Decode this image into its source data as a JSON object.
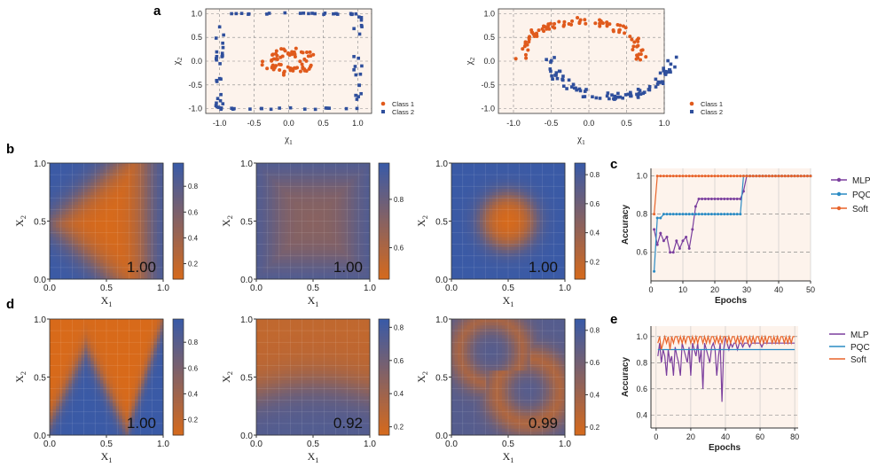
{
  "panel_labels": {
    "a": "a",
    "b": "b",
    "c": "c",
    "d": "d",
    "e": "e"
  },
  "colors": {
    "class1": "#e05a1c",
    "class2": "#2f4f9c",
    "mlp": "#7b3f9e",
    "pqc": "#2a8bc4",
    "soft": "#e8642a",
    "bg": "#fdf3ec",
    "heat_low": "#d86a1a",
    "heat_high": "#3a5aa6"
  },
  "chart_data": [
    {
      "id": "a-left",
      "type": "scatter",
      "xlabel": "χ1",
      "ylabel": "χ2",
      "xlim": [
        -1.2,
        1.2
      ],
      "ylim": [
        -1.1,
        1.1
      ],
      "xticks": [
        "-1.0",
        "-0.5",
        "0.0",
        "0.5",
        "1.0"
      ],
      "yticks": [
        "-1.0",
        "-0.5",
        "0.0",
        "0.5",
        "1.0"
      ],
      "legend": [
        "Class 1",
        "Class 2"
      ],
      "dataset": "circles"
    },
    {
      "id": "a-right",
      "type": "scatter",
      "xlabel": "χ1",
      "ylabel": "χ2",
      "xlim": [
        -1.2,
        1.0
      ],
      "ylim": [
        -1.1,
        1.1
      ],
      "xticks": [
        "-1.0",
        "-0.5",
        "0.0",
        "0.5",
        "1.0"
      ],
      "yticks": [
        "-1.0",
        "-0.5",
        "0.0",
        "0.5",
        "1.0"
      ],
      "legend": [
        "Class 1",
        "Class 2"
      ],
      "dataset": "moons"
    },
    {
      "id": "b1",
      "type": "heatmap",
      "xlabel": "X1",
      "ylabel": "X2",
      "score": "1.00",
      "shape": "triangle",
      "xticks": [
        "0.0",
        "0.5",
        "1.0"
      ],
      "yticks": [
        "0.0",
        "0.5",
        "1.0"
      ],
      "cbar_ticks": [
        "0.2",
        "0.4",
        "0.6",
        "0.8"
      ]
    },
    {
      "id": "b2",
      "type": "heatmap",
      "xlabel": "X1",
      "ylabel": "X2",
      "score": "1.00",
      "shape": "square",
      "xticks": [
        "0.0",
        "0.5",
        "1.0"
      ],
      "yticks": [
        "0.0",
        "0.5",
        "1.0"
      ],
      "cbar_ticks": [
        "0.6",
        "0.8"
      ]
    },
    {
      "id": "b3",
      "type": "heatmap",
      "xlabel": "X1",
      "ylabel": "X2",
      "score": "1.00",
      "shape": "disk",
      "xticks": [
        "0.0",
        "0.5",
        "1.0"
      ],
      "yticks": [
        "0.0",
        "0.5",
        "1.0"
      ],
      "cbar_ticks": [
        "0.2",
        "0.4",
        "0.6",
        "0.8"
      ]
    },
    {
      "id": "d1",
      "type": "heatmap",
      "xlabel": "X1",
      "ylabel": "X2",
      "score": "1.00",
      "shape": "zigzag",
      "xticks": [
        "0.0",
        "0.5",
        "1.0"
      ],
      "yticks": [
        "0.0",
        "0.5",
        "1.0"
      ],
      "cbar_ticks": [
        "0.2",
        "0.4",
        "0.6",
        "0.8"
      ]
    },
    {
      "id": "d2",
      "type": "heatmap",
      "xlabel": "X1",
      "ylabel": "X2",
      "score": "0.92",
      "shape": "band",
      "xticks": [
        "0.0",
        "0.5",
        "1.0"
      ],
      "yticks": [
        "0.0",
        "0.5",
        "1.0"
      ],
      "cbar_ticks": [
        "0.2",
        "0.4",
        "0.6",
        "0.8"
      ]
    },
    {
      "id": "d3",
      "type": "heatmap",
      "xlabel": "X1",
      "ylabel": "X2",
      "score": "0.99",
      "shape": "moons",
      "xticks": [
        "0.0",
        "0.5",
        "1.0"
      ],
      "yticks": [
        "0.0",
        "0.5",
        "1.0"
      ],
      "cbar_ticks": [
        "0.2",
        "0.4",
        "0.6",
        "0.8"
      ]
    },
    {
      "id": "c",
      "type": "line",
      "xlabel": "Epochs",
      "ylabel": "Accuracy",
      "xlim": [
        0,
        50
      ],
      "ylim": [
        0.45,
        1.04
      ],
      "xticks": [
        0,
        10,
        20,
        30,
        40,
        50
      ],
      "yticks": [
        0.6,
        0.8,
        1.0
      ],
      "ytick_labels": [
        "0.6",
        "0.8",
        "1.0"
      ],
      "series": [
        {
          "name": "MLP",
          "x": [
            1,
            2,
            3,
            4,
            5,
            6,
            7,
            8,
            9,
            10,
            11,
            12,
            13,
            14,
            15,
            16,
            17,
            18,
            19,
            20,
            21,
            22,
            23,
            24,
            25,
            26,
            27,
            28,
            29,
            30,
            31,
            32,
            33,
            34,
            35,
            36,
            37,
            38,
            39,
            40,
            41,
            42,
            43,
            44,
            45,
            46,
            47,
            48,
            49,
            50
          ],
          "values": [
            0.72,
            0.64,
            0.7,
            0.66,
            0.68,
            0.6,
            0.6,
            0.66,
            0.62,
            0.66,
            0.68,
            0.62,
            0.72,
            0.84,
            0.88,
            0.88,
            0.88,
            0.88,
            0.88,
            0.88,
            0.88,
            0.88,
            0.88,
            0.88,
            0.88,
            0.88,
            0.88,
            0.88,
            0.92,
            1.0,
            1.0,
            1.0,
            1.0,
            1.0,
            1.0,
            1.0,
            1.0,
            1.0,
            1.0,
            1.0,
            1.0,
            1.0,
            1.0,
            1.0,
            1.0,
            1.0,
            1.0,
            1.0,
            1.0,
            1.0
          ]
        },
        {
          "name": "PQC",
          "x": [
            1,
            2,
            3,
            4,
            5,
            6,
            7,
            8,
            9,
            10,
            11,
            12,
            13,
            14,
            15,
            16,
            17,
            18,
            19,
            20,
            21,
            22,
            23,
            24,
            25,
            26,
            27,
            28,
            29,
            30,
            31,
            32,
            33,
            34,
            35,
            36,
            37,
            38,
            39,
            40,
            41,
            42,
            43,
            44,
            45,
            46,
            47,
            48,
            49,
            50
          ],
          "values": [
            0.5,
            0.78,
            0.78,
            0.8,
            0.8,
            0.8,
            0.8,
            0.8,
            0.8,
            0.8,
            0.8,
            0.8,
            0.8,
            0.8,
            0.8,
            0.8,
            0.8,
            0.8,
            0.8,
            0.8,
            0.8,
            0.8,
            0.8,
            0.8,
            0.8,
            0.8,
            0.8,
            0.8,
            1.0,
            1.0,
            1.0,
            1.0,
            1.0,
            1.0,
            1.0,
            1.0,
            1.0,
            1.0,
            1.0,
            1.0,
            1.0,
            1.0,
            1.0,
            1.0,
            1.0,
            1.0,
            1.0,
            1.0,
            1.0,
            1.0
          ]
        },
        {
          "name": "Soft",
          "x": [
            1,
            2,
            3,
            4,
            5,
            6,
            7,
            8,
            9,
            10,
            11,
            12,
            13,
            14,
            15,
            16,
            17,
            18,
            19,
            20,
            21,
            22,
            23,
            24,
            25,
            26,
            27,
            28,
            29,
            30,
            31,
            32,
            33,
            34,
            35,
            36,
            37,
            38,
            39,
            40,
            41,
            42,
            43,
            44,
            45,
            46,
            47,
            48,
            49,
            50
          ],
          "values": [
            0.8,
            1.0,
            1.0,
            1.0,
            1.0,
            1.0,
            1.0,
            1.0,
            1.0,
            1.0,
            1.0,
            1.0,
            1.0,
            1.0,
            1.0,
            1.0,
            1.0,
            1.0,
            1.0,
            1.0,
            1.0,
            1.0,
            1.0,
            1.0,
            1.0,
            1.0,
            1.0,
            1.0,
            1.0,
            1.0,
            1.0,
            1.0,
            1.0,
            1.0,
            1.0,
            1.0,
            1.0,
            1.0,
            1.0,
            1.0,
            1.0,
            1.0,
            1.0,
            1.0,
            1.0,
            1.0,
            1.0,
            1.0,
            1.0,
            1.0
          ]
        }
      ],
      "legend": [
        "MLP",
        "PQC",
        "Soft"
      ]
    },
    {
      "id": "e",
      "type": "line",
      "xlabel": "Epochs",
      "ylabel": "Accuracy",
      "xlim": [
        -3,
        82
      ],
      "ylim": [
        0.3,
        1.08
      ],
      "xticks": [
        0,
        20,
        40,
        60,
        80
      ],
      "yticks": [
        0.4,
        0.6,
        0.8,
        1.0
      ],
      "ytick_labels": [
        "0.4",
        "0.6",
        "0.8",
        "1.0"
      ],
      "series": [
        {
          "name": "MLP",
          "x": [
            1,
            2,
            3,
            4,
            5,
            6,
            7,
            8,
            9,
            10,
            11,
            12,
            13,
            14,
            15,
            16,
            17,
            18,
            19,
            20,
            21,
            22,
            23,
            24,
            25,
            26,
            27,
            28,
            29,
            30,
            31,
            32,
            33,
            34,
            35,
            36,
            37,
            38,
            39,
            40,
            41,
            42,
            43,
            44,
            45,
            46,
            47,
            48,
            49,
            50,
            51,
            52,
            53,
            54,
            55,
            56,
            57,
            58,
            59,
            60,
            61,
            62,
            63,
            64,
            65,
            66,
            67,
            68,
            69,
            70,
            71,
            72,
            73,
            74,
            75,
            76,
            77,
            78,
            79,
            80
          ],
          "values": [
            0.85,
            0.95,
            0.8,
            0.9,
            0.85,
            0.7,
            0.9,
            0.8,
            0.85,
            0.7,
            0.92,
            0.85,
            0.8,
            0.7,
            0.95,
            0.9,
            0.85,
            0.8,
            0.92,
            0.7,
            0.95,
            0.9,
            0.85,
            0.95,
            0.8,
            0.9,
            0.6,
            0.95,
            0.9,
            0.85,
            0.8,
            0.92,
            0.95,
            0.9,
            0.7,
            0.85,
            0.95,
            0.5,
            0.9,
            1.0,
            0.95,
            0.9,
            0.95,
            0.92,
            0.95,
            0.95,
            0.9,
            0.95,
            0.95,
            0.92,
            0.95,
            0.95,
            0.95,
            0.92,
            0.95,
            0.95,
            0.95,
            0.95,
            0.95,
            0.95,
            0.92,
            0.95,
            0.95,
            0.95,
            0.95,
            0.95,
            0.95,
            0.95,
            0.95,
            0.95,
            0.95,
            0.95,
            0.95,
            0.95,
            0.95,
            0.95,
            0.95,
            0.95,
            0.95,
            0.95
          ]
        },
        {
          "name": "PQC",
          "x": [
            1,
            2,
            3,
            4,
            5,
            6,
            7,
            8,
            9,
            10,
            11,
            12,
            13,
            14,
            15,
            16,
            17,
            18,
            19,
            20,
            21,
            22,
            23,
            24,
            25,
            26,
            27,
            28,
            29,
            30,
            31,
            32,
            33,
            34,
            35,
            36,
            37,
            38,
            39,
            40,
            41,
            42,
            43,
            44,
            45,
            46,
            47,
            48,
            49,
            50,
            51,
            52,
            53,
            54,
            55,
            56,
            57,
            58,
            59,
            60,
            61,
            62,
            63,
            64,
            65,
            66,
            67,
            68,
            69,
            70,
            71,
            72,
            73,
            74,
            75,
            76,
            77,
            78,
            79,
            80
          ],
          "values": [
            0.9,
            0.9,
            0.9,
            0.9,
            0.9,
            0.9,
            0.9,
            0.9,
            0.9,
            0.9,
            0.9,
            0.9,
            0.9,
            0.9,
            0.9,
            0.9,
            0.9,
            0.9,
            0.9,
            0.9,
            0.9,
            0.9,
            0.9,
            0.9,
            0.9,
            0.9,
            0.9,
            0.9,
            0.9,
            0.9,
            0.9,
            0.9,
            0.9,
            0.9,
            0.9,
            0.9,
            0.9,
            0.9,
            0.9,
            0.9,
            0.9,
            0.9,
            0.9,
            0.9,
            0.9,
            0.9,
            0.9,
            0.9,
            0.9,
            0.9,
            0.9,
            0.9,
            0.9,
            0.9,
            0.9,
            0.9,
            0.9,
            0.9,
            0.9,
            0.9,
            0.9,
            0.9,
            0.9,
            0.9,
            0.9,
            0.9,
            0.9,
            0.9,
            0.9,
            0.9,
            0.9,
            0.9,
            0.9,
            0.9,
            0.9,
            0.9,
            0.9,
            0.9,
            0.9,
            0.9
          ]
        },
        {
          "name": "Soft",
          "x": [
            1,
            2,
            3,
            4,
            5,
            6,
            7,
            8,
            9,
            10,
            11,
            12,
            13,
            14,
            15,
            16,
            17,
            18,
            19,
            20,
            21,
            22,
            23,
            24,
            25,
            26,
            27,
            28,
            29,
            30,
            31,
            32,
            33,
            34,
            35,
            36,
            37,
            38,
            39,
            40,
            41,
            42,
            43,
            44,
            45,
            46,
            47,
            48,
            49,
            50,
            51,
            52,
            53,
            54,
            55,
            56,
            57,
            58,
            59,
            60,
            61,
            62,
            63,
            64,
            65,
            66,
            67,
            68,
            69,
            70,
            71,
            72,
            73,
            74,
            75,
            76,
            77,
            78,
            79,
            80
          ],
          "values": [
            0.95,
            1.0,
            0.9,
            0.95,
            1.0,
            0.95,
            1.0,
            0.9,
            1.0,
            0.95,
            1.0,
            1.0,
            0.95,
            1.0,
            0.95,
            1.0,
            0.95,
            1.0,
            1.0,
            0.95,
            1.0,
            0.95,
            1.0,
            0.95,
            1.0,
            1.0,
            0.95,
            1.0,
            0.95,
            1.0,
            0.95,
            1.0,
            1.0,
            0.95,
            1.0,
            0.95,
            1.0,
            0.95,
            1.0,
            1.0,
            0.95,
            1.0,
            0.95,
            1.0,
            1.0,
            0.95,
            1.0,
            0.95,
            1.0,
            0.95,
            1.0,
            1.0,
            0.95,
            1.0,
            0.95,
            1.0,
            0.95,
            1.0,
            1.0,
            0.95,
            1.0,
            0.95,
            1.0,
            0.95,
            1.0,
            1.0,
            0.95,
            1.0,
            0.95,
            1.0,
            0.95,
            1.0,
            1.0,
            0.95,
            1.0,
            0.95,
            1.0,
            0.95,
            1.0,
            1.0
          ]
        }
      ],
      "legend": [
        "MLP",
        "PQC",
        "Soft"
      ]
    }
  ]
}
